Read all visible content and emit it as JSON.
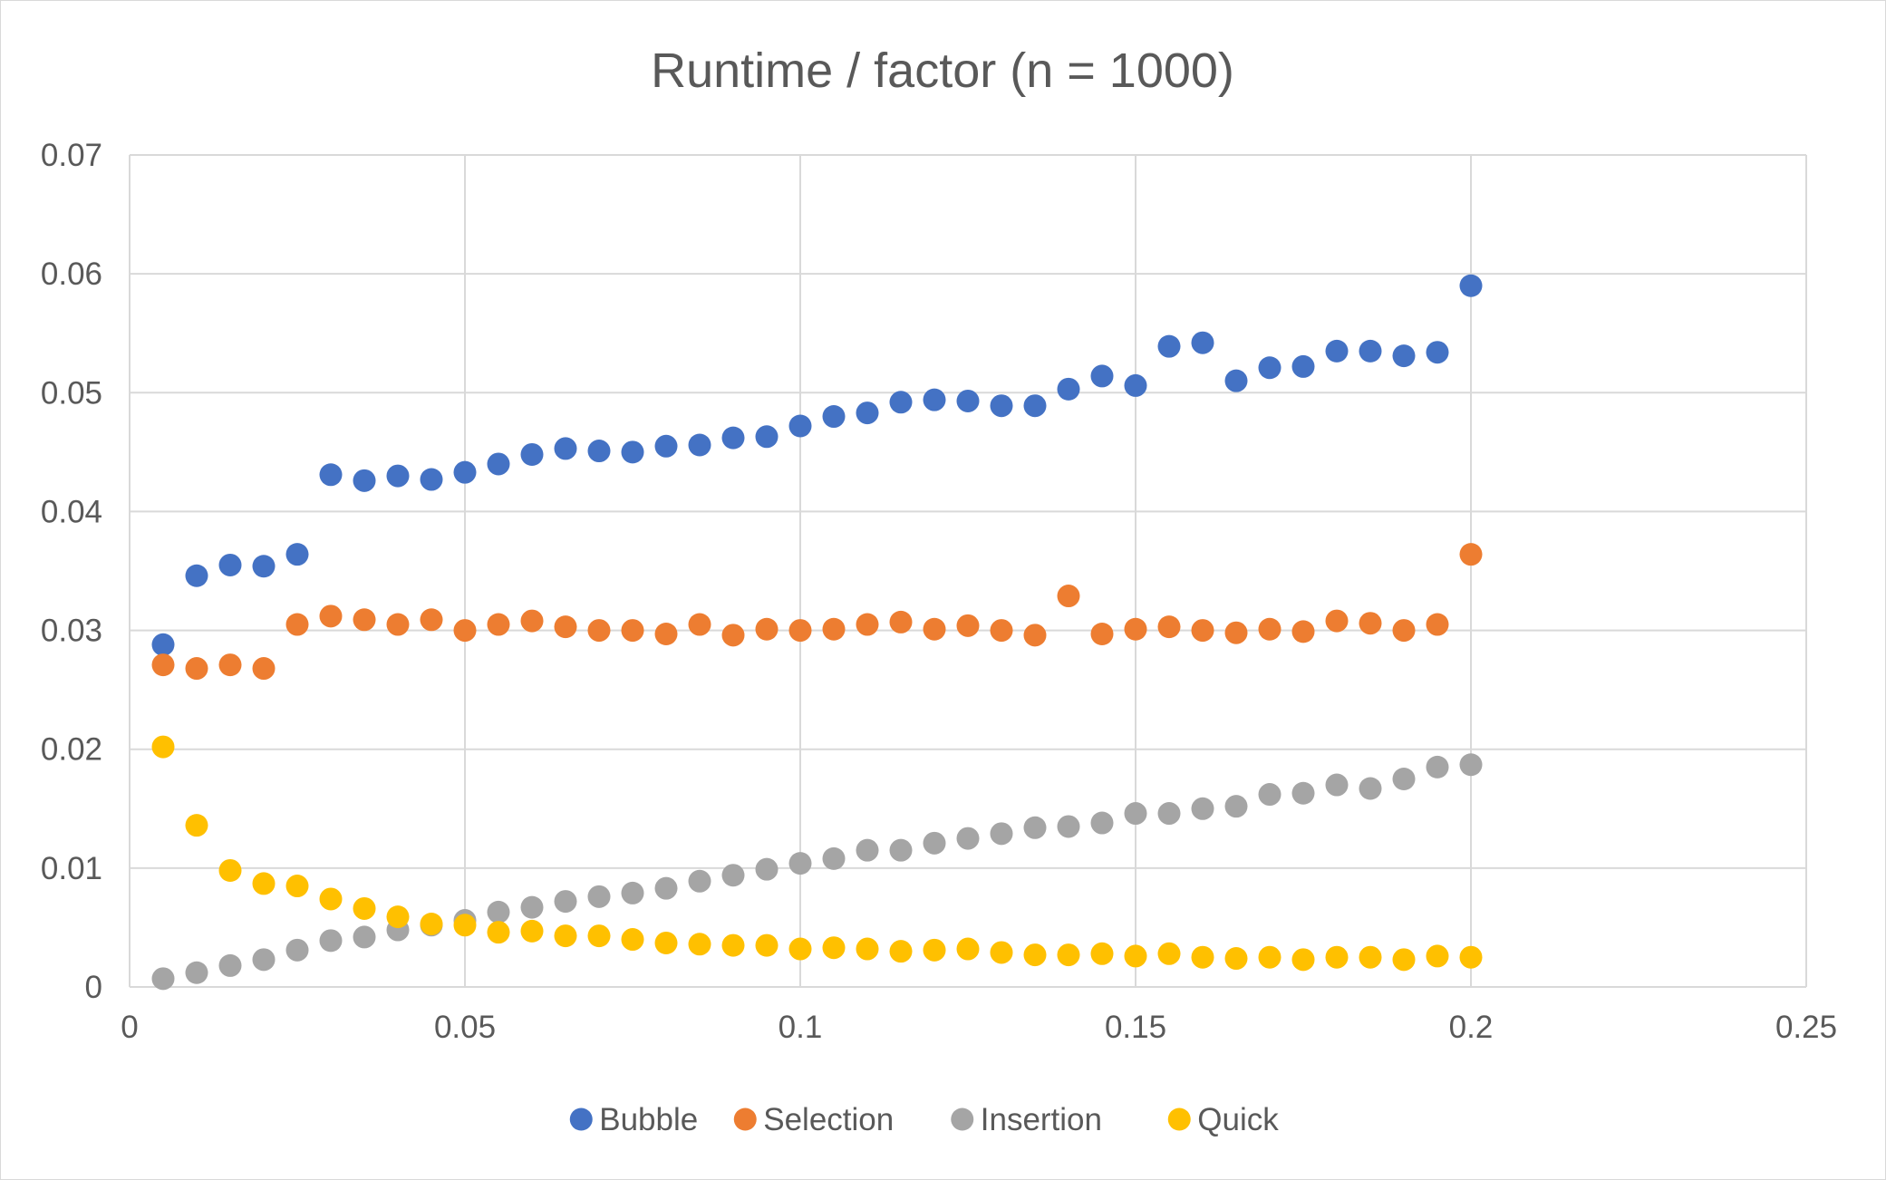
{
  "chart_data": {
    "type": "scatter",
    "title": "Runtime / factor (n = 1000)",
    "xlabel": "",
    "ylabel": "",
    "xlim": [
      0,
      0.25
    ],
    "ylim": [
      0,
      0.07
    ],
    "x_ticks": [
      "0",
      "0.05",
      "0.1",
      "0.15",
      "0.2",
      "0.25"
    ],
    "y_ticks": [
      "0",
      "0.01",
      "0.02",
      "0.03",
      "0.04",
      "0.05",
      "0.06",
      "0.07"
    ],
    "grid": true,
    "legend_position": "bottom",
    "x": [
      0.005,
      0.01,
      0.015,
      0.02,
      0.025,
      0.03,
      0.035,
      0.04,
      0.045,
      0.05,
      0.055,
      0.06,
      0.065,
      0.07,
      0.075,
      0.08,
      0.085,
      0.09,
      0.095,
      0.1,
      0.105,
      0.11,
      0.115,
      0.12,
      0.125,
      0.13,
      0.135,
      0.14,
      0.145,
      0.15,
      0.155,
      0.16,
      0.165,
      0.17,
      0.175,
      0.18,
      0.185,
      0.19,
      0.195,
      0.2
    ],
    "series": [
      {
        "name": "Bubble",
        "color": "#4472C4",
        "values": [
          0.0288,
          0.0346,
          0.0355,
          0.0354,
          0.0364,
          0.0431,
          0.0426,
          0.043,
          0.0427,
          0.0433,
          0.044,
          0.0448,
          0.0453,
          0.0451,
          0.045,
          0.0455,
          0.0456,
          0.0462,
          0.0463,
          0.0472,
          0.048,
          0.0483,
          0.0492,
          0.0494,
          0.0493,
          0.0489,
          0.0489,
          0.0503,
          0.0514,
          0.0506,
          0.0539,
          0.0542,
          0.051,
          0.0521,
          0.0522,
          0.0535,
          0.0535,
          0.0531,
          0.0534,
          0.059
        ]
      },
      {
        "name": "Selection",
        "color": "#ED7D31",
        "values": [
          0.0271,
          0.0268,
          0.0271,
          0.0268,
          0.0305,
          0.0312,
          0.0309,
          0.0305,
          0.0309,
          0.03,
          0.0305,
          0.0308,
          0.0303,
          0.03,
          0.03,
          0.0297,
          0.0305,
          0.0296,
          0.0301,
          0.03,
          0.0301,
          0.0305,
          0.0307,
          0.0301,
          0.0304,
          0.03,
          0.0296,
          0.0329,
          0.0297,
          0.0301,
          0.0303,
          0.03,
          0.0298,
          0.0301,
          0.0299,
          0.0308,
          0.0306,
          0.03,
          0.0305,
          0.0364
        ]
      },
      {
        "name": "Insertion",
        "color": "#A5A5A5",
        "values": [
          0.0007,
          0.0012,
          0.0018,
          0.0023,
          0.0031,
          0.0039,
          0.0042,
          0.0048,
          0.0052,
          0.0056,
          0.0063,
          0.0067,
          0.0072,
          0.0076,
          0.0079,
          0.0083,
          0.0089,
          0.0094,
          0.0099,
          0.0104,
          0.0108,
          0.0115,
          0.0115,
          0.0121,
          0.0125,
          0.0129,
          0.0134,
          0.0135,
          0.0138,
          0.0146,
          0.0146,
          0.015,
          0.0152,
          0.0162,
          0.0163,
          0.017,
          0.0167,
          0.0175,
          0.0185,
          0.0187
        ]
      },
      {
        "name": "Quick",
        "color": "#FFC000",
        "values": [
          0.0202,
          0.0136,
          0.0098,
          0.0087,
          0.0085,
          0.0074,
          0.0066,
          0.0059,
          0.0053,
          0.0052,
          0.0046,
          0.0047,
          0.0043,
          0.0043,
          0.004,
          0.0037,
          0.0036,
          0.0035,
          0.0035,
          0.0032,
          0.0033,
          0.0032,
          0.003,
          0.0031,
          0.0032,
          0.0029,
          0.0027,
          0.0027,
          0.0028,
          0.0026,
          0.0028,
          0.0025,
          0.0024,
          0.0025,
          0.0023,
          0.0025,
          0.0025,
          0.0023,
          0.0026,
          0.0025
        ]
      }
    ]
  }
}
